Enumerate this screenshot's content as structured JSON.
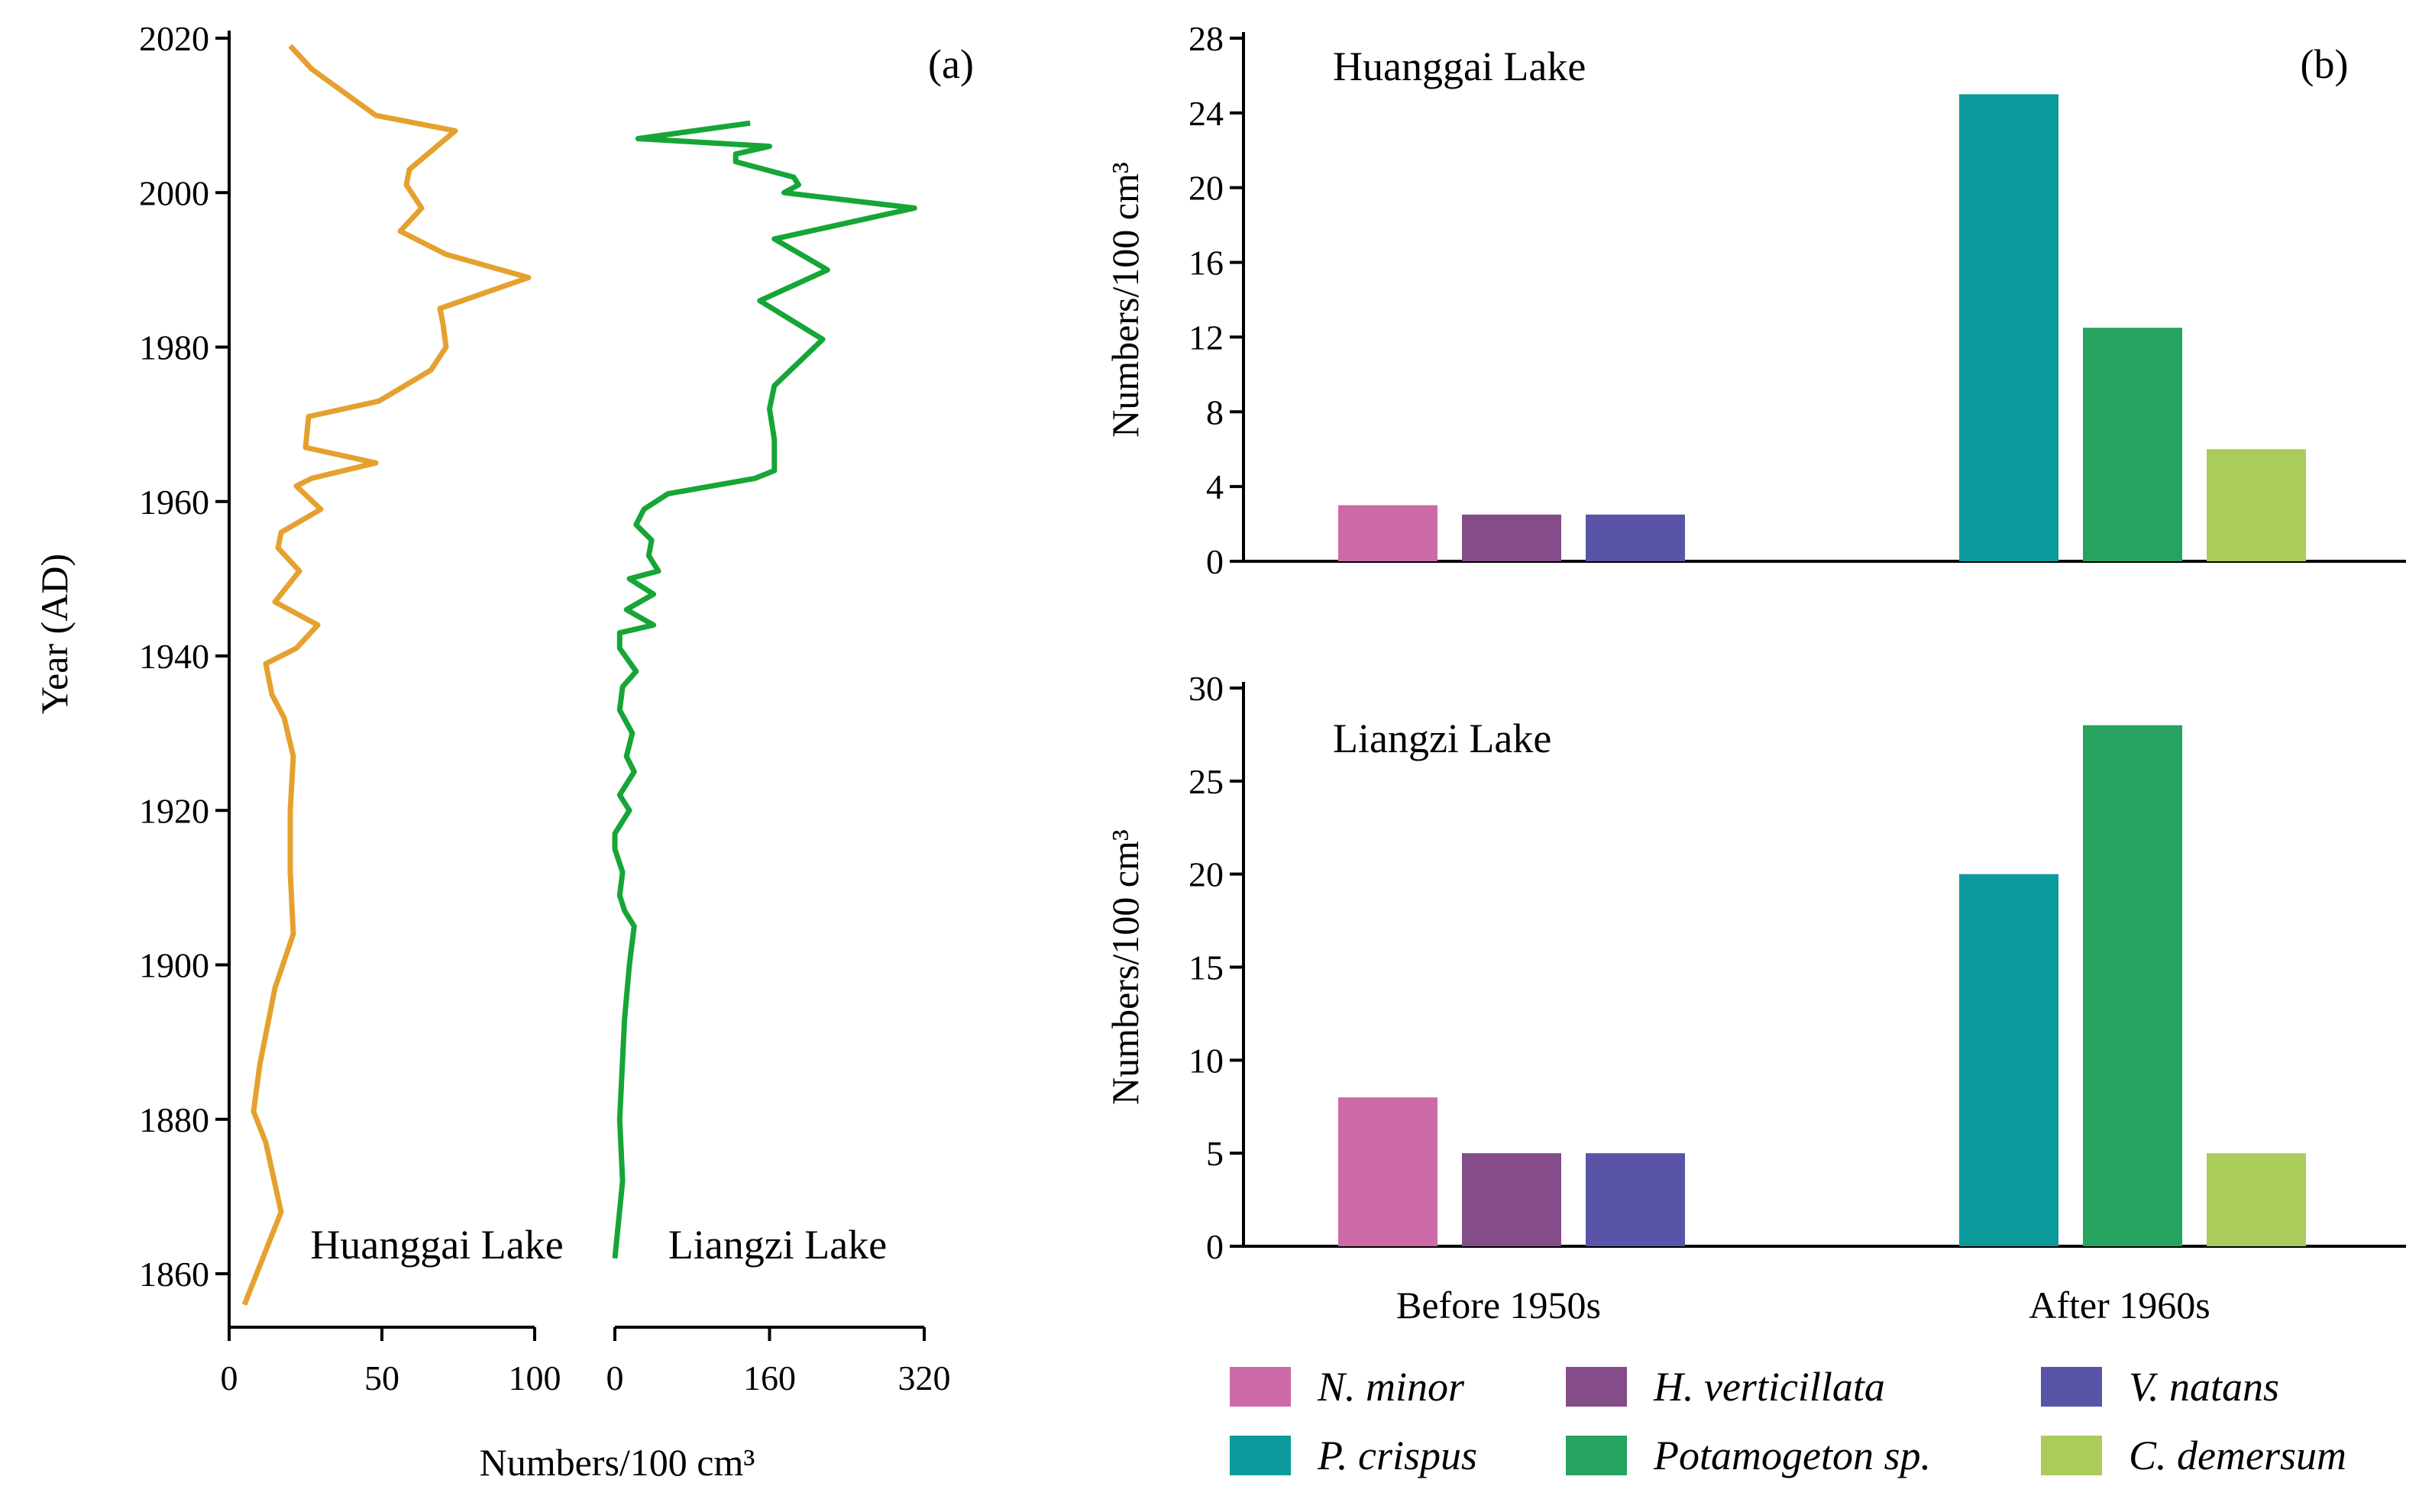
{
  "chart_data": [
    {
      "panel": "(a)",
      "type": "line",
      "ylabel": "Year (AD)",
      "xlabel": "Numbers/100 cm³",
      "ylim": [
        1855,
        2020
      ],
      "yticks": [
        "1860",
        "1880",
        "1900",
        "1920",
        "1940",
        "1960",
        "1980",
        "2000",
        "2020"
      ],
      "series": [
        {
          "name": "Huanggai Lake",
          "color": "#E5A12F",
          "xlim": [
            0,
            100
          ],
          "xticks": [
            "0",
            "50",
            "100"
          ],
          "points": [
            [
              20,
              2019
            ],
            [
              27,
              2016
            ],
            [
              48,
              2010
            ],
            [
              74,
              2008
            ],
            [
              59,
              2003
            ],
            [
              58,
              2001
            ],
            [
              63,
              1998
            ],
            [
              56,
              1995
            ],
            [
              71,
              1992
            ],
            [
              98,
              1989
            ],
            [
              69,
              1985
            ],
            [
              70,
              1983
            ],
            [
              71,
              1980
            ],
            [
              66,
              1977
            ],
            [
              49,
              1973
            ],
            [
              26,
              1971
            ],
            [
              25,
              1967
            ],
            [
              48,
              1965
            ],
            [
              27,
              1963
            ],
            [
              22,
              1962
            ],
            [
              30,
              1959
            ],
            [
              17,
              1956
            ],
            [
              16,
              1954
            ],
            [
              23,
              1951
            ],
            [
              15,
              1947
            ],
            [
              29,
              1944
            ],
            [
              22,
              1941
            ],
            [
              12,
              1939
            ],
            [
              14,
              1935
            ],
            [
              18,
              1932
            ],
            [
              21,
              1927
            ],
            [
              20,
              1920
            ],
            [
              20,
              1912
            ],
            [
              21,
              1904
            ],
            [
              15,
              1897
            ],
            [
              12,
              1891
            ],
            [
              10,
              1887
            ],
            [
              8,
              1881
            ],
            [
              12,
              1877
            ],
            [
              17,
              1868
            ],
            [
              13,
              1864
            ],
            [
              5,
              1856
            ]
          ]
        },
        {
          "name": "Liangzi Lake",
          "color": "#16A536",
          "xlim": [
            0,
            320
          ],
          "xticks": [
            "0",
            "160",
            "320"
          ],
          "points": [
            [
              140,
              2009
            ],
            [
              24,
              2007
            ],
            [
              160,
              2006
            ],
            [
              125,
              2005
            ],
            [
              125,
              2004
            ],
            [
              185,
              2002
            ],
            [
              190,
              2001
            ],
            [
              175,
              2000
            ],
            [
              310,
              1998
            ],
            [
              165,
              1994
            ],
            [
              220,
              1990
            ],
            [
              150,
              1986
            ],
            [
              215,
              1981
            ],
            [
              165,
              1975
            ],
            [
              160,
              1972
            ],
            [
              165,
              1968
            ],
            [
              165,
              1965
            ],
            [
              165,
              1964
            ],
            [
              145,
              1963
            ],
            [
              55,
              1961
            ],
            [
              30,
              1959
            ],
            [
              22,
              1957
            ],
            [
              38,
              1955
            ],
            [
              35,
              1953
            ],
            [
              45,
              1951
            ],
            [
              15,
              1950
            ],
            [
              40,
              1948
            ],
            [
              12,
              1946
            ],
            [
              40,
              1944
            ],
            [
              5,
              1943
            ],
            [
              5,
              1941
            ],
            [
              22,
              1938
            ],
            [
              8,
              1936
            ],
            [
              5,
              1933
            ],
            [
              18,
              1930
            ],
            [
              12,
              1927
            ],
            [
              20,
              1925
            ],
            [
              5,
              1922
            ],
            [
              15,
              1920
            ],
            [
              0,
              1917
            ],
            [
              0,
              1915
            ],
            [
              8,
              1912
            ],
            [
              5,
              1909
            ],
            [
              10,
              1907
            ],
            [
              20,
              1905
            ],
            [
              15,
              1900
            ],
            [
              10,
              1893
            ],
            [
              5,
              1880
            ],
            [
              8,
              1872
            ],
            [
              0,
              1862
            ]
          ]
        }
      ],
      "labels": [
        "Huanggai Lake",
        "Liangzi Lake"
      ]
    },
    {
      "panel": "(b)",
      "type": "bar",
      "categories": [
        "Before 1950s",
        "After 1960s"
      ],
      "subplots": [
        {
          "title": "Huanggai Lake",
          "ylabel": "Numbers/100 cm³",
          "ylim": [
            0,
            28
          ],
          "yticks": [
            "0",
            "4",
            "8",
            "12",
            "16",
            "20",
            "24",
            "28"
          ],
          "series": [
            {
              "name": "N. minor",
              "category": "Before 1950s",
              "value": 3
            },
            {
              "name": "H. verticillata",
              "category": "Before 1950s",
              "value": 2.5
            },
            {
              "name": "V. natans",
              "category": "Before 1950s",
              "value": 2.5
            },
            {
              "name": "P. crispus",
              "category": "After 1960s",
              "value": 25
            },
            {
              "name": "Potamogeton sp.",
              "category": "After 1960s",
              "value": 12.5
            },
            {
              "name": "C. demersum",
              "category": "After 1960s",
              "value": 6
            }
          ]
        },
        {
          "title": "Liangzi Lake",
          "ylabel": "Numbers/100 cm³",
          "ylim": [
            0,
            30
          ],
          "yticks": [
            "0",
            "5",
            "10",
            "15",
            "20",
            "25",
            "30"
          ],
          "series": [
            {
              "name": "N. minor",
              "category": "Before 1950s",
              "value": 8
            },
            {
              "name": "H. verticillata",
              "category": "Before 1950s",
              "value": 5
            },
            {
              "name": "V. natans",
              "category": "Before 1950s",
              "value": 5
            },
            {
              "name": "P. crispus",
              "category": "After 1960s",
              "value": 20
            },
            {
              "name": "Potamogeton sp.",
              "category": "After 1960s",
              "value": 28
            },
            {
              "name": "C. demersum",
              "category": "After 1960s",
              "value": 5
            }
          ]
        }
      ],
      "legend": [
        {
          "name": "N. minor",
          "color": "#CC6AA7"
        },
        {
          "name": "H. verticillata",
          "color": "#844C88"
        },
        {
          "name": "V. natans",
          "color": "#5954A8"
        },
        {
          "name": "P. crispus",
          "color": "#0C9A9C"
        },
        {
          "name": "Potamogeton sp.",
          "color": "#26A35E"
        },
        {
          "name": "C. demersum",
          "color": "#A9CC5B"
        }
      ]
    }
  ]
}
